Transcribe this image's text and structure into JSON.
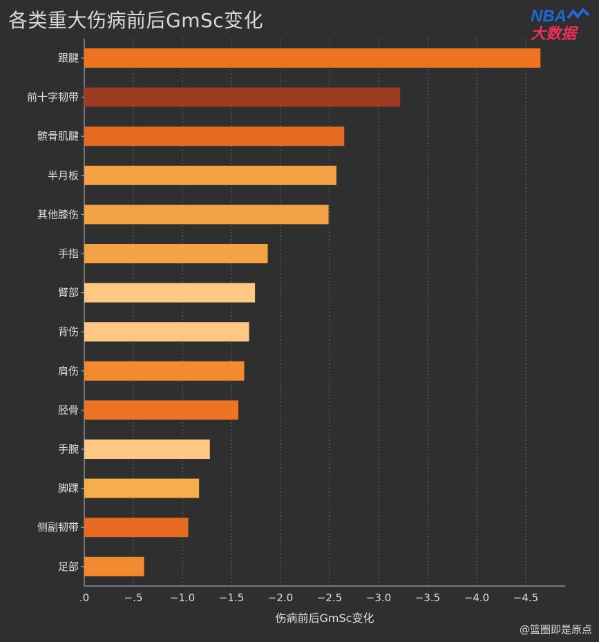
{
  "title": "各类重大伤病前后GmSc变化",
  "logo": {
    "line1": "NBA",
    "line2": "大数据"
  },
  "credit": "@篮圈即是原点",
  "chart_data": {
    "type": "bar",
    "orientation": "horizontal",
    "title": "各类重大伤病前后GmSc变化",
    "xlabel": "伤病前后GmSc变化",
    "ylabel": "",
    "xlim": [
      0,
      -4.9
    ],
    "xticks": [
      0,
      -0.5,
      -1.0,
      -1.5,
      -2.0,
      -2.5,
      -3.0,
      -3.5,
      -4.0,
      -4.5
    ],
    "xtick_labels": [
      ".0",
      "−.5",
      "−1.0",
      "−1.5",
      "−2.0",
      "−2.5",
      "−3.0",
      "−3.5",
      "−4.0",
      "−4.5"
    ],
    "grid": "vertical dotted",
    "categories": [
      "跟腱",
      "前十字韧带",
      "髌骨肌腱",
      "半月板",
      "其他膝伤",
      "手指",
      "臂部",
      "背伤",
      "肩伤",
      "胫骨",
      "手腕",
      "脚踝",
      "侧副韧带",
      "足部"
    ],
    "values": [
      -4.65,
      -3.22,
      -2.65,
      -2.57,
      -2.49,
      -1.87,
      -1.74,
      -1.68,
      -1.63,
      -1.57,
      -1.28,
      -1.17,
      -1.06,
      -0.61
    ],
    "colors": [
      "#ee7424",
      "#9b3b22",
      "#e76a23",
      "#f3a346",
      "#f3a346",
      "#f3a346",
      "#ffc784",
      "#ffc784",
      "#f38a30",
      "#ee7424",
      "#ffc784",
      "#f6ad4b",
      "#e76a23",
      "#f38a30"
    ]
  }
}
